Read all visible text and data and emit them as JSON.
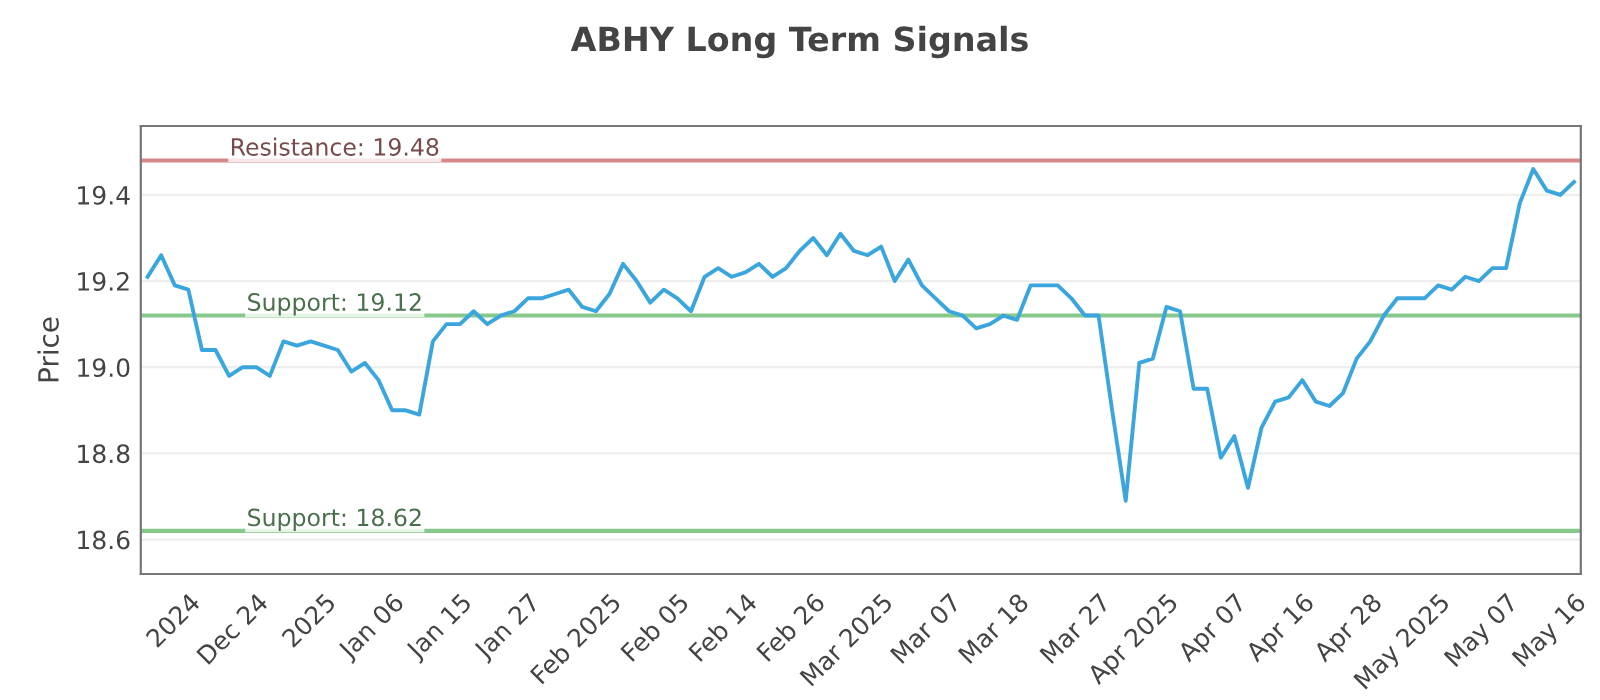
{
  "chart_data": {
    "type": "line",
    "title": "ABHY Long Term Signals",
    "ylabel": "Price",
    "categories": [
      null,
      null,
      null,
      "2024",
      null,
      null,
      null,
      null,
      "Dec 24",
      null,
      null,
      null,
      null,
      "2025",
      null,
      null,
      null,
      null,
      "Jan 06",
      null,
      null,
      null,
      null,
      "Jan 15",
      null,
      null,
      null,
      null,
      "Jan 27",
      null,
      null,
      null,
      null,
      null,
      "Feb 2025",
      null,
      null,
      null,
      null,
      "Feb 05",
      null,
      null,
      null,
      null,
      "Feb 14",
      null,
      null,
      null,
      null,
      "Feb 26",
      null,
      null,
      null,
      null,
      "Mar 2025",
      null,
      null,
      null,
      null,
      "Mar 07",
      null,
      null,
      null,
      null,
      "Mar 18",
      null,
      null,
      null,
      null,
      null,
      "Mar 27",
      null,
      null,
      null,
      null,
      "Apr 2025",
      null,
      null,
      null,
      null,
      "Apr 07",
      null,
      null,
      null,
      null,
      "Apr 16",
      null,
      null,
      null,
      null,
      "Apr 28",
      null,
      null,
      null,
      null,
      "May 2025",
      null,
      null,
      null,
      null,
      "May 07",
      null,
      null,
      null,
      null,
      "May 16"
    ],
    "series": [
      {
        "color": "#3aa6dd",
        "values": [
          19.21,
          19.26,
          19.19,
          19.18,
          19.04,
          19.04,
          18.98,
          19.0,
          19.0,
          18.98,
          19.06,
          19.05,
          19.06,
          19.05,
          19.04,
          18.99,
          19.01,
          18.97,
          18.9,
          18.9,
          18.89,
          19.06,
          19.1,
          19.1,
          19.13,
          19.1,
          19.12,
          19.13,
          19.16,
          19.16,
          19.17,
          19.18,
          19.14,
          19.13,
          19.17,
          19.24,
          19.2,
          19.15,
          19.18,
          19.16,
          19.13,
          19.21,
          19.23,
          19.21,
          19.22,
          19.24,
          19.21,
          19.23,
          19.27,
          19.3,
          19.26,
          19.31,
          19.27,
          19.26,
          19.28,
          19.2,
          19.25,
          19.19,
          19.16,
          19.13,
          19.12,
          19.09,
          19.1,
          19.12,
          19.11,
          19.19,
          19.19,
          19.19,
          19.16,
          19.12,
          19.12,
          18.9,
          18.69,
          19.01,
          19.02,
          19.14,
          19.13,
          18.95,
          18.95,
          18.79,
          18.84,
          18.72,
          18.86,
          18.92,
          18.93,
          18.97,
          18.92,
          18.91,
          18.94,
          19.02,
          19.06,
          19.12,
          19.16,
          19.16,
          19.16,
          19.19,
          19.18,
          19.21,
          19.2,
          19.23,
          19.23,
          19.38,
          19.46,
          19.41,
          19.4,
          19.43
        ]
      }
    ],
    "ylim": [
      18.52,
      19.56
    ],
    "yticks": [
      18.6,
      18.8,
      {
        "value": 19.0,
        "label": "19.0"
      },
      19.2,
      19.4
    ],
    "grid": "y",
    "ref_lines": [
      {
        "axis": "y",
        "value": 19.48,
        "label": "Resistance: 19.48",
        "color": "#d9888a"
      },
      {
        "axis": "y",
        "value": 19.12,
        "label": "Support: 19.12",
        "color": "#86c98a"
      },
      {
        "axis": "y",
        "value": 18.62,
        "label": "Support: 18.62",
        "color": "#86c98a"
      }
    ]
  }
}
